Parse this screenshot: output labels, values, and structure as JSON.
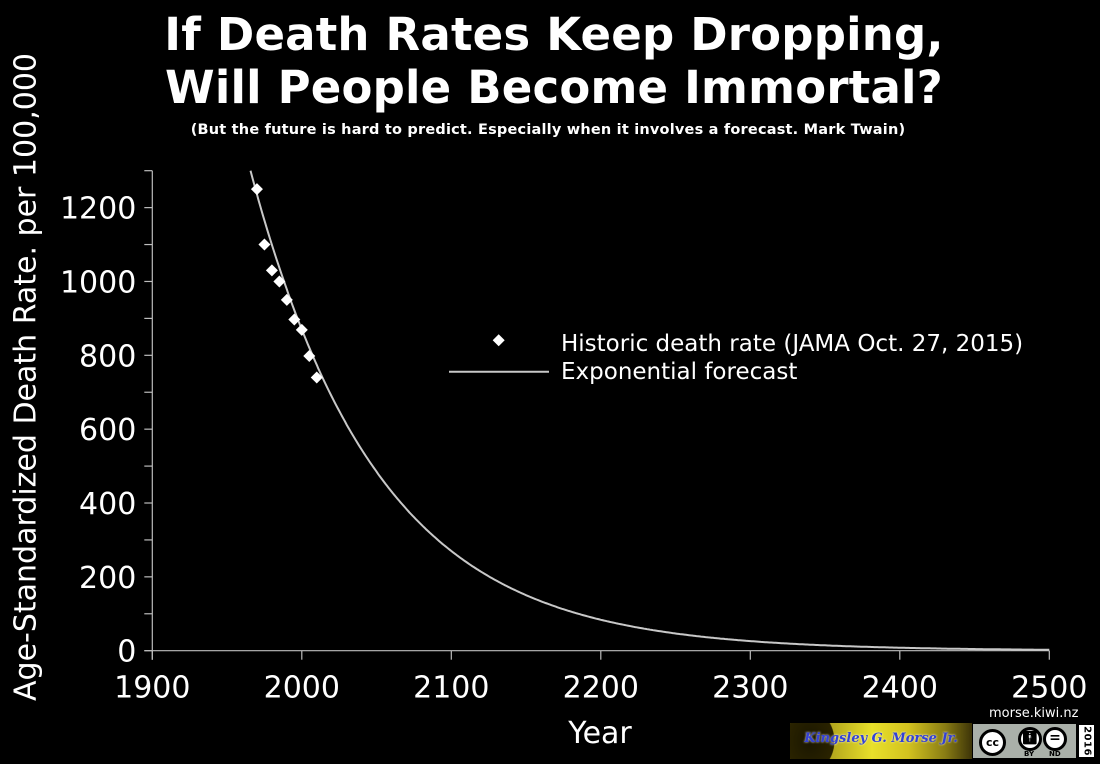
{
  "header": {
    "title_line1": "If Death Rates Keep Dropping,",
    "title_line2": "Will People Become Immortal?",
    "subtitle": "(But the future is hard to predict. Especially when it involves a forecast. Mark Twain)"
  },
  "chart_data": {
    "type": "scatter",
    "title": "If Death Rates Keep Dropping, Will People Become Immortal?",
    "subtitle": "(But the future is hard to predict. Especially when it involves a forecast. Mark Twain)",
    "xlabel": "Year",
    "ylabel": "Age-Standardized Death Rate. per 100,000",
    "xlim": [
      1900,
      2500
    ],
    "ylim": [
      0,
      1300
    ],
    "xticks": [
      1900,
      2000,
      2100,
      2200,
      2300,
      2400,
      2500
    ],
    "yticks": [
      0,
      200,
      400,
      600,
      800,
      1000,
      1200
    ],
    "yminor_step": 100,
    "grid": false,
    "legend_position": "center-right",
    "series": [
      {
        "name": "Historic death rate (JAMA Oct. 27, 2015)",
        "kind": "scatter",
        "marker": "diamond",
        "color": "#ffffff",
        "x": [
          1970,
          1975,
          1980,
          1985,
          1990,
          1995,
          2000,
          2005,
          2010
        ],
        "y": [
          1250,
          1100,
          1030,
          1000,
          950,
          897,
          869,
          798,
          740
        ]
      },
      {
        "name": "Exponential forecast",
        "kind": "line",
        "color": "#c8c8c8",
        "model": "y = 870 * exp(-0.0117 * (year - 2000))",
        "x": [
          1963,
          2000,
          2050,
          2100,
          2150,
          2200,
          2250,
          2300,
          2350,
          2400,
          2450,
          2500
        ],
        "y": [
          1300,
          870,
          484,
          270,
          150,
          84,
          47,
          26,
          14,
          8,
          4.5,
          2.5
        ]
      }
    ],
    "legend": [
      {
        "label": "Historic death rate (JAMA Oct. 27, 2015)",
        "symbol": "diamond"
      },
      {
        "label": "Exponential forecast",
        "symbol": "line"
      }
    ]
  },
  "footer": {
    "url": "morse.kiwi.nz",
    "author_banner": "Kingsley G. Morse Jr.",
    "license": {
      "cc": "cc",
      "by": "BY",
      "nd": "ND",
      "year": "2016"
    },
    "colors": {
      "banner_text": "#3340d6",
      "badge_bg": "#aab0a9"
    }
  }
}
